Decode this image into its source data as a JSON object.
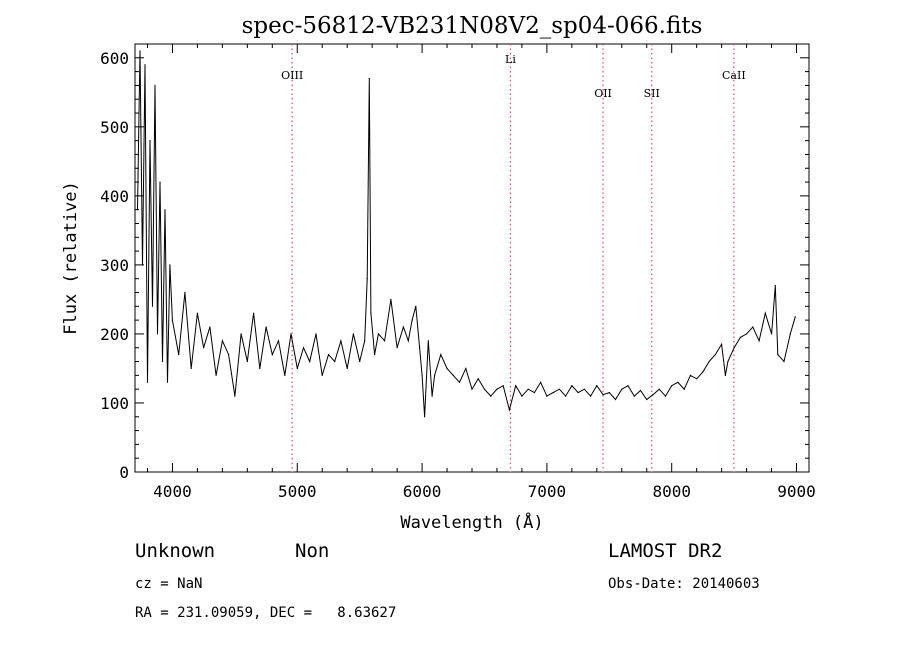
{
  "chart_data": {
    "type": "line",
    "title": "spec-56812-VB231N08V2_sp04-066.fits",
    "xlabel": "Wavelength (Å)",
    "ylabel": "Flux (relative)",
    "xlim": [
      3700,
      9100
    ],
    "ylim": [
      0,
      620
    ],
    "xticks": [
      4000,
      5000,
      6000,
      7000,
      8000,
      9000
    ],
    "yticks": [
      0,
      100,
      200,
      300,
      400,
      500,
      600
    ],
    "grid": false,
    "legend": "none",
    "line_color": "#000000",
    "marker_color": "#e05050",
    "lines": [
      {
        "label": "OIII",
        "wavelength": 4959
      },
      {
        "label": "Li",
        "wavelength": 6708
      },
      {
        "label": "OII",
        "wavelength": 7450
      },
      {
        "label": "SII",
        "wavelength": 7840
      },
      {
        "label": "CaII",
        "wavelength": 8498
      }
    ],
    "series": [
      {
        "x": [
          3720,
          3740,
          3760,
          3780,
          3800,
          3820,
          3840,
          3860,
          3880,
          3900,
          3920,
          3940,
          3960,
          3980,
          4000,
          4050,
          4100,
          4150,
          4200,
          4250,
          4300,
          4350,
          4400,
          4450,
          4500,
          4550,
          4600,
          4650,
          4700,
          4750,
          4800,
          4850,
          4900,
          4950,
          5000,
          5050,
          5100,
          5150,
          5200,
          5250,
          5300,
          5350,
          5400,
          5450,
          5500,
          5540,
          5560,
          5577,
          5590,
          5620,
          5650,
          5700,
          5750,
          5800,
          5850,
          5890,
          5920,
          5950,
          5980,
          6000,
          6020,
          6050,
          6080,
          6100,
          6150,
          6200,
          6250,
          6300,
          6350,
          6400,
          6450,
          6500,
          6550,
          6600,
          6650,
          6700,
          6750,
          6800,
          6850,
          6900,
          6950,
          7000,
          7050,
          7100,
          7150,
          7200,
          7250,
          7300,
          7350,
          7400,
          7450,
          7500,
          7550,
          7600,
          7650,
          7700,
          7750,
          7800,
          7850,
          7900,
          7950,
          8000,
          8050,
          8100,
          8150,
          8200,
          8250,
          8300,
          8350,
          8400,
          8430,
          8450,
          8500,
          8550,
          8600,
          8650,
          8700,
          8750,
          8800,
          8830,
          8850,
          8900,
          8950,
          8990
        ],
        "y": [
          380,
          610,
          300,
          590,
          130,
          480,
          240,
          560,
          200,
          420,
          160,
          380,
          130,
          300,
          220,
          170,
          260,
          150,
          230,
          180,
          210,
          140,
          190,
          170,
          110,
          200,
          160,
          230,
          150,
          210,
          170,
          190,
          140,
          200,
          150,
          180,
          160,
          200,
          140,
          170,
          160,
          190,
          150,
          200,
          160,
          190,
          280,
          570,
          230,
          170,
          200,
          190,
          250,
          180,
          210,
          190,
          220,
          240,
          180,
          140,
          80,
          190,
          110,
          140,
          170,
          150,
          140,
          130,
          150,
          120,
          135,
          120,
          110,
          120,
          125,
          90,
          125,
          110,
          120,
          115,
          130,
          110,
          115,
          120,
          110,
          125,
          115,
          120,
          110,
          125,
          112,
          115,
          105,
          120,
          125,
          110,
          118,
          105,
          112,
          120,
          110,
          125,
          130,
          120,
          140,
          135,
          145,
          160,
          170,
          185,
          140,
          160,
          180,
          195,
          200,
          210,
          190,
          230,
          200,
          270,
          170,
          160,
          200,
          225
        ]
      }
    ]
  },
  "footer": {
    "object_class": "Unknown",
    "subclass": "Non",
    "survey": "LAMOST DR2",
    "cz": "cz = NaN",
    "obs_date": "Obs-Date: 20140603",
    "coords": "RA = 231.09059, DEC =   8.63627"
  }
}
